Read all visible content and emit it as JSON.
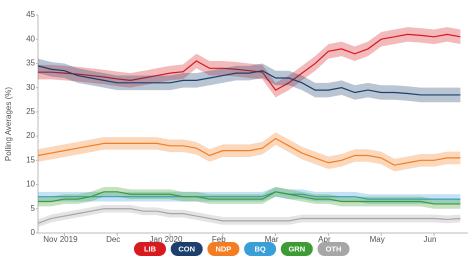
{
  "chart_data": {
    "type": "line",
    "y_label": "Polling Averages (%)",
    "categories": [
      null,
      null,
      "Nov 2019",
      null,
      null,
      null,
      "Dec",
      null,
      null,
      null,
      "Jan 2020",
      null,
      null,
      null,
      "Feb",
      null,
      null,
      null,
      "Mar",
      null,
      null,
      null,
      "Apr",
      null,
      null,
      null,
      "May",
      null,
      null,
      null,
      "Jun",
      null,
      null
    ],
    "ylim": [
      0,
      45
    ],
    "yticks": [
      0,
      5,
      10,
      15,
      20,
      25,
      30,
      35,
      40,
      45
    ],
    "series": [
      {
        "name": "LIB",
        "color": "#d71920",
        "band": 1.5,
        "values": [
          33.2,
          33.2,
          33.0,
          32.8,
          32.5,
          32.2,
          31.8,
          31.5,
          32.0,
          32.5,
          33.0,
          33.3,
          35.5,
          34.0,
          34.0,
          33.8,
          33.5,
          33.2,
          29.5,
          31.0,
          33.0,
          35.0,
          37.5,
          38.0,
          37.0,
          38.0,
          40.0,
          40.5,
          41.0,
          40.8,
          40.5,
          41.0,
          40.5
        ]
      },
      {
        "name": "CON",
        "color": "#1c3f6e",
        "band": 1.5,
        "values": [
          34.5,
          33.8,
          33.5,
          32.5,
          32.0,
          31.5,
          31.0,
          31.0,
          31.0,
          31.0,
          31.0,
          31.5,
          31.5,
          32.0,
          32.5,
          33.0,
          33.0,
          33.5,
          32.0,
          32.0,
          31.0,
          29.5,
          29.5,
          30.0,
          29.0,
          29.5,
          29.0,
          29.0,
          28.8,
          28.5,
          28.5,
          28.5,
          28.5
        ]
      },
      {
        "name": "NDP",
        "color": "#f37d22",
        "band": 1.3,
        "values": [
          16.0,
          16.5,
          17.0,
          17.5,
          18.0,
          18.5,
          18.5,
          18.5,
          18.5,
          18.5,
          18.0,
          18.0,
          17.5,
          16.0,
          17.0,
          17.0,
          17.0,
          17.5,
          19.5,
          18.0,
          16.5,
          15.5,
          14.5,
          15.0,
          16.0,
          16.0,
          15.5,
          14.0,
          14.5,
          15.0,
          15.0,
          15.5,
          15.5
        ]
      },
      {
        "name": "BQ",
        "color": "#3a9fd8",
        "band": 1.0,
        "values": [
          7.5,
          7.5,
          7.5,
          7.5,
          7.5,
          7.5,
          7.5,
          7.5,
          7.5,
          7.5,
          7.5,
          7.5,
          7.5,
          7.5,
          7.5,
          7.5,
          7.5,
          7.5,
          8.5,
          8.0,
          8.0,
          7.5,
          7.5,
          7.5,
          7.5,
          7.0,
          7.0,
          7.0,
          7.0,
          7.0,
          7.0,
          7.0,
          7.0
        ]
      },
      {
        "name": "GRN",
        "color": "#3d9b35",
        "band": 1.0,
        "values": [
          6.5,
          6.5,
          7.0,
          7.0,
          7.5,
          8.5,
          8.5,
          8.0,
          8.0,
          8.0,
          8.0,
          7.5,
          7.5,
          7.0,
          7.0,
          7.0,
          7.0,
          7.0,
          8.5,
          8.0,
          7.5,
          7.0,
          7.0,
          6.5,
          6.5,
          6.5,
          6.5,
          6.5,
          6.5,
          6.5,
          6.0,
          6.0,
          6.0
        ]
      },
      {
        "name": "OTH",
        "color": "#a6a6a6",
        "band": 0.8,
        "values": [
          2.0,
          3.0,
          3.5,
          4.0,
          4.5,
          5.0,
          5.0,
          5.0,
          4.5,
          4.5,
          4.0,
          4.0,
          3.5,
          3.0,
          2.5,
          2.5,
          2.5,
          2.5,
          2.5,
          2.5,
          3.0,
          3.0,
          3.0,
          3.0,
          3.0,
          3.0,
          3.0,
          3.0,
          3.0,
          3.0,
          3.0,
          2.8,
          3.0
        ]
      }
    ]
  }
}
